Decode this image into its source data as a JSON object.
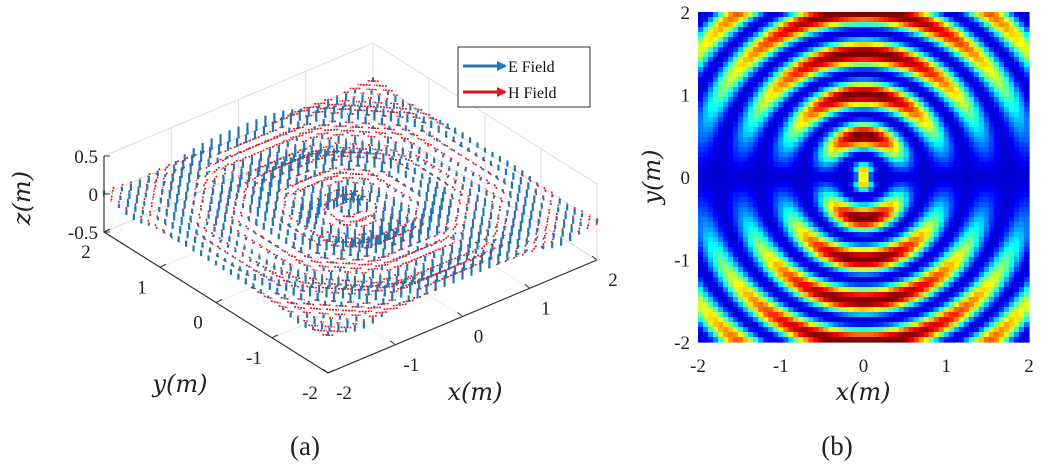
{
  "chart_data": [
    {
      "type": "quiver3d",
      "caption": "(a)",
      "xlabel": "x(m)",
      "ylabel": "y(m)",
      "zlabel": "z(m)",
      "xlim": [
        -2,
        2
      ],
      "ylim": [
        -2,
        2
      ],
      "zlim": [
        -0.5,
        0.5
      ],
      "xticks": [
        "-2",
        "-1",
        "0",
        "1",
        "2"
      ],
      "yticks": [
        "-2",
        "-1",
        "0",
        "1",
        "2"
      ],
      "zticks": [
        "-0.5",
        "0",
        "0.5"
      ],
      "grid": true,
      "legend": {
        "position": "top-right",
        "entries": [
          {
            "name": "E Field",
            "color": "#1f77b4"
          },
          {
            "name": "H Field",
            "color": "#e3141c"
          }
        ]
      }
    },
    {
      "type": "heatmap",
      "caption": "(b)",
      "xlabel": "x(m)",
      "ylabel": "y(m)",
      "xlim": [
        -2,
        2
      ],
      "ylim": [
        -2,
        2
      ],
      "xticks": [
        "-2",
        "-1",
        "0",
        "1",
        "2"
      ],
      "yticks": [
        "-2",
        "-1",
        "0",
        "1",
        "2"
      ],
      "colormap": "jet"
    }
  ]
}
